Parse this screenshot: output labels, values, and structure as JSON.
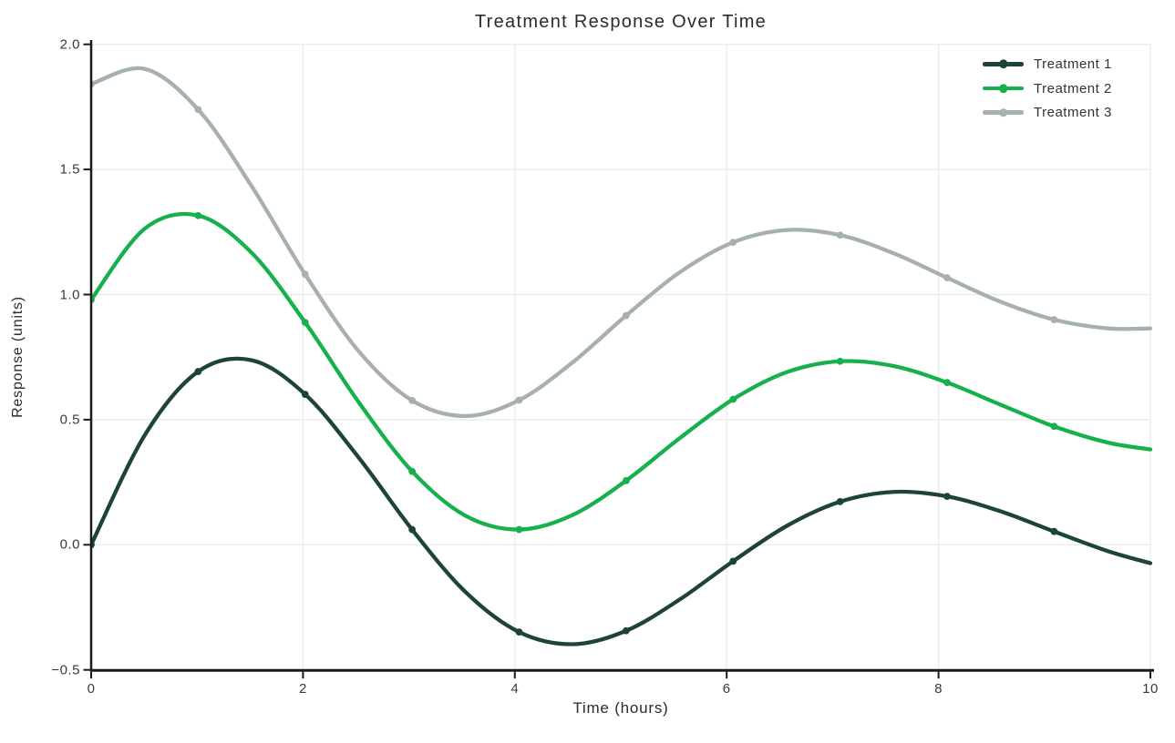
{
  "chart_data": {
    "type": "line",
    "title": "Treatment Response Over Time",
    "xlabel": "Time (hours)",
    "ylabel": "Response (units)",
    "xlim": [
      0,
      10
    ],
    "ylim": [
      -0.5,
      2.0
    ],
    "grid": true,
    "legend_position": "upper right",
    "x_tick_values": [
      0,
      2,
      4,
      6,
      8,
      10
    ],
    "x_tick_labels": [
      "0",
      "2",
      "4",
      "6",
      "8",
      "10"
    ],
    "y_tick_values": [
      -0.5,
      0.0,
      0.5,
      1.0,
      1.5,
      2.0
    ],
    "y_tick_labels": [
      "−0.5",
      "0.0",
      "0.5",
      "1.0",
      "1.5",
      "2.0"
    ],
    "x": [
      0,
      0.5051,
      1.0101,
      1.5152,
      2.0202,
      2.5253,
      3.0303,
      3.5354,
      4.0404,
      4.5455,
      5.0505,
      5.5556,
      6.0606,
      6.5657,
      7.0707,
      7.5758,
      8.0808,
      8.5859,
      9.0909,
      9.596,
      10
    ],
    "marker_indices": [
      0,
      2,
      4,
      6,
      8,
      10,
      12,
      14,
      16,
      18
    ],
    "series": [
      {
        "name": "Treatment 1",
        "color": "#1e443a",
        "values": [
          0.0,
          0.4374,
          0.6923,
          0.7375,
          0.6013,
          0.3488,
          0.0606,
          -0.1893,
          -0.3488,
          -0.3973,
          -0.3436,
          -0.2189,
          -0.0657,
          0.075,
          0.1724,
          0.2114,
          0.1935,
          0.1336,
          0.0532,
          -0.025,
          -0.0736
        ]
      },
      {
        "name": "Treatment 2",
        "color": "#16b04d",
        "values": [
          0.9794,
          1.2632,
          1.3157,
          1.1669,
          0.8887,
          0.5701,
          0.2933,
          0.1157,
          0.0609,
          0.1193,
          0.2564,
          0.4257,
          0.5815,
          0.6897,
          0.7335,
          0.7144,
          0.6484,
          0.5597,
          0.4731,
          0.4087,
          0.381
        ]
      },
      {
        "name": "Treatment 3",
        "color": "#a6b0ad",
        "values": [
          1.8415,
          1.902,
          1.7396,
          1.433,
          1.0808,
          0.774,
          0.5765,
          0.5146,
          0.5781,
          0.729,
          0.9161,
          1.0886,
          1.2088,
          1.2579,
          1.2375,
          1.165,
          1.067,
          0.9712,
          0.8997,
          0.8649,
          0.8647
        ]
      }
    ],
    "colors": {
      "background": "#ffffff",
      "grid": "#ececec",
      "spine": "#1a1a1a",
      "tick_label": "#3a3a3a",
      "title": "#2b2b2b",
      "legend_text": "#333333"
    }
  }
}
